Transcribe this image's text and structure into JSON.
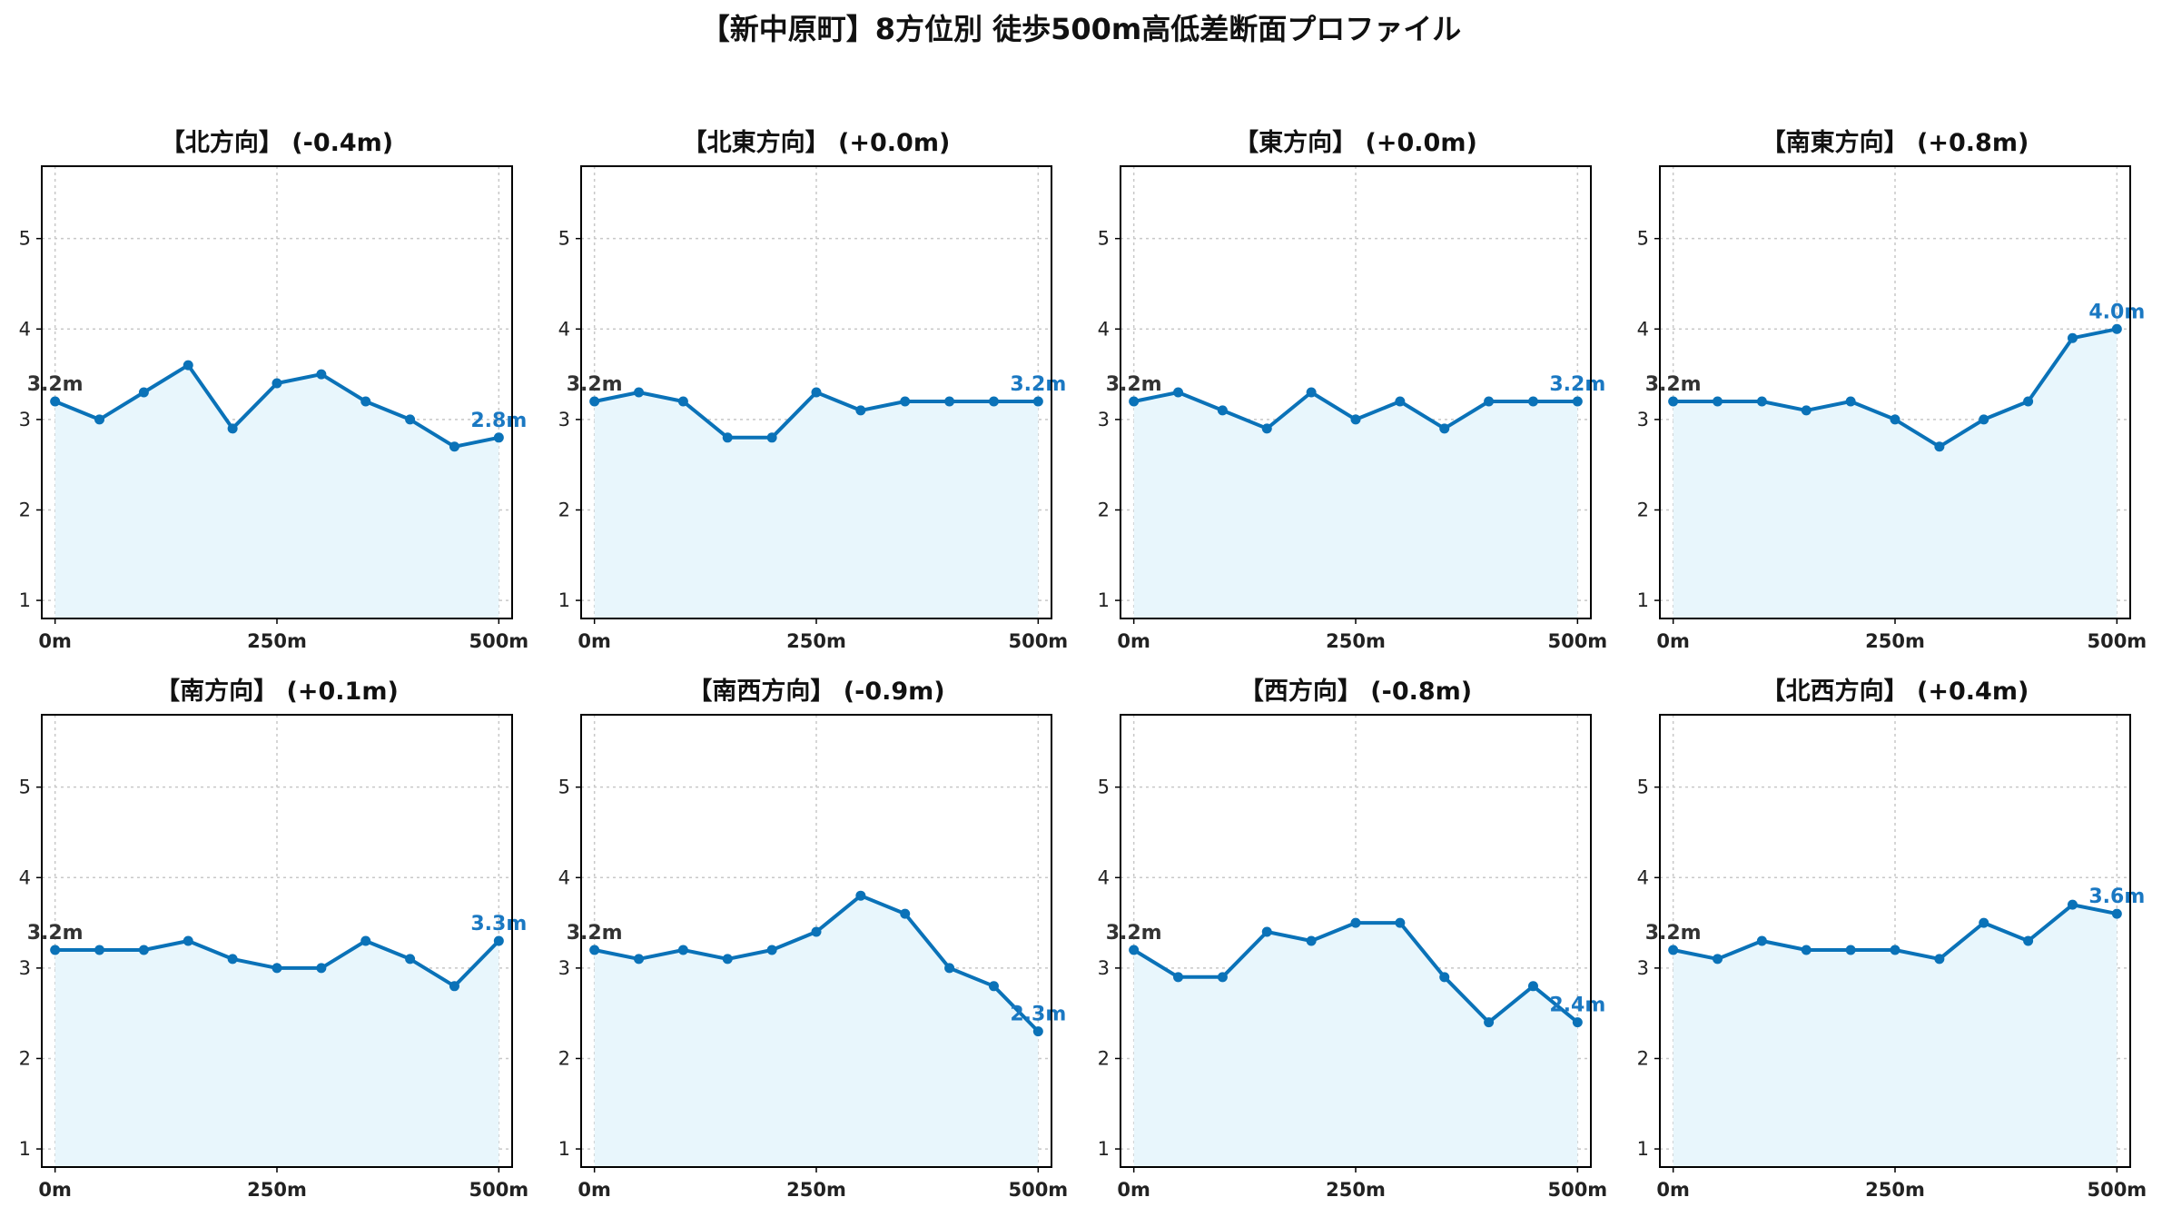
{
  "title": "【新中原町】8方位別 徒歩500m高低差断面プロファイル",
  "colors": {
    "line": "#0a72b8",
    "fill": "#e8f6fc",
    "grid": "#c8c8c8",
    "axis": "#000000",
    "end_label": "#1a78c2",
    "start_label": "#333333"
  },
  "chart_data": [
    {
      "type": "area",
      "title": "【北方向】 (-0.4m)",
      "x": [
        0,
        50,
        100,
        150,
        200,
        250,
        300,
        350,
        400,
        450,
        500
      ],
      "y": [
        3.2,
        3.0,
        3.3,
        3.6,
        2.9,
        3.4,
        3.5,
        3.2,
        3.0,
        2.7,
        2.8
      ],
      "start_label": "3.2m",
      "end_label": "2.8m",
      "xticks": [
        0,
        250,
        500
      ],
      "xticklabels": [
        "0m",
        "250m",
        "500m"
      ],
      "yticks": [
        1,
        2,
        3,
        4,
        5
      ],
      "xlim": [
        -15,
        515
      ],
      "ylim": [
        0.8,
        5.8
      ],
      "grid": true
    },
    {
      "type": "area",
      "title": "【北東方向】 (+0.0m)",
      "x": [
        0,
        50,
        100,
        150,
        200,
        250,
        300,
        350,
        400,
        450,
        500
      ],
      "y": [
        3.2,
        3.3,
        3.2,
        2.8,
        2.8,
        3.3,
        3.1,
        3.2,
        3.2,
        3.2,
        3.2
      ],
      "start_label": "3.2m",
      "end_label": "3.2m",
      "xticks": [
        0,
        250,
        500
      ],
      "xticklabels": [
        "0m",
        "250m",
        "500m"
      ],
      "yticks": [
        1,
        2,
        3,
        4,
        5
      ],
      "xlim": [
        -15,
        515
      ],
      "ylim": [
        0.8,
        5.8
      ],
      "grid": true
    },
    {
      "type": "area",
      "title": "【東方向】 (+0.0m)",
      "x": [
        0,
        50,
        100,
        150,
        200,
        250,
        300,
        350,
        400,
        450,
        500
      ],
      "y": [
        3.2,
        3.3,
        3.1,
        2.9,
        3.3,
        3.0,
        3.2,
        2.9,
        3.2,
        3.2,
        3.2
      ],
      "start_label": "3.2m",
      "end_label": "3.2m",
      "xticks": [
        0,
        250,
        500
      ],
      "xticklabels": [
        "0m",
        "250m",
        "500m"
      ],
      "yticks": [
        1,
        2,
        3,
        4,
        5
      ],
      "xlim": [
        -15,
        515
      ],
      "ylim": [
        0.8,
        5.8
      ],
      "grid": true
    },
    {
      "type": "area",
      "title": "【南東方向】 (+0.8m)",
      "x": [
        0,
        50,
        100,
        150,
        200,
        250,
        300,
        350,
        400,
        450,
        500
      ],
      "y": [
        3.2,
        3.2,
        3.2,
        3.1,
        3.2,
        3.0,
        2.7,
        3.0,
        3.2,
        3.9,
        4.0
      ],
      "start_label": "3.2m",
      "end_label": "4.0m",
      "xticks": [
        0,
        250,
        500
      ],
      "xticklabels": [
        "0m",
        "250m",
        "500m"
      ],
      "yticks": [
        1,
        2,
        3,
        4,
        5
      ],
      "xlim": [
        -15,
        515
      ],
      "ylim": [
        0.8,
        5.8
      ],
      "grid": true
    },
    {
      "type": "area",
      "title": "【南方向】 (+0.1m)",
      "x": [
        0,
        50,
        100,
        150,
        200,
        250,
        300,
        350,
        400,
        450,
        500
      ],
      "y": [
        3.2,
        3.2,
        3.2,
        3.3,
        3.1,
        3.0,
        3.0,
        3.3,
        3.1,
        2.8,
        3.3
      ],
      "start_label": "3.2m",
      "end_label": "3.3m",
      "xticks": [
        0,
        250,
        500
      ],
      "xticklabels": [
        "0m",
        "250m",
        "500m"
      ],
      "yticks": [
        1,
        2,
        3,
        4,
        5
      ],
      "xlim": [
        -15,
        515
      ],
      "ylim": [
        0.8,
        5.8
      ],
      "grid": true
    },
    {
      "type": "area",
      "title": "【南西方向】 (-0.9m)",
      "x": [
        0,
        50,
        100,
        150,
        200,
        250,
        300,
        350,
        400,
        450,
        500
      ],
      "y": [
        3.2,
        3.1,
        3.2,
        3.1,
        3.2,
        3.4,
        3.8,
        3.6,
        3.0,
        2.8,
        2.3
      ],
      "start_label": "3.2m",
      "end_label": "2.3m",
      "xticks": [
        0,
        250,
        500
      ],
      "xticklabels": [
        "0m",
        "250m",
        "500m"
      ],
      "yticks": [
        1,
        2,
        3,
        4,
        5
      ],
      "xlim": [
        -15,
        515
      ],
      "ylim": [
        0.8,
        5.8
      ],
      "grid": true
    },
    {
      "type": "area",
      "title": "【西方向】 (-0.8m)",
      "x": [
        0,
        50,
        100,
        150,
        200,
        250,
        300,
        350,
        400,
        450,
        500
      ],
      "y": [
        3.2,
        2.9,
        2.9,
        3.4,
        3.3,
        3.5,
        3.5,
        2.9,
        2.4,
        2.8,
        2.4
      ],
      "start_label": "3.2m",
      "end_label": "2.4m",
      "xticks": [
        0,
        250,
        500
      ],
      "xticklabels": [
        "0m",
        "250m",
        "500m"
      ],
      "yticks": [
        1,
        2,
        3,
        4,
        5
      ],
      "xlim": [
        -15,
        515
      ],
      "ylim": [
        0.8,
        5.8
      ],
      "grid": true
    },
    {
      "type": "area",
      "title": "【北西方向】 (+0.4m)",
      "x": [
        0,
        50,
        100,
        150,
        200,
        250,
        300,
        350,
        400,
        450,
        500
      ],
      "y": [
        3.2,
        3.1,
        3.3,
        3.2,
        3.2,
        3.2,
        3.1,
        3.5,
        3.3,
        3.7,
        3.6
      ],
      "start_label": "3.2m",
      "end_label": "3.6m",
      "xticks": [
        0,
        250,
        500
      ],
      "xticklabels": [
        "0m",
        "250m",
        "500m"
      ],
      "yticks": [
        1,
        2,
        3,
        4,
        5
      ],
      "xlim": [
        -15,
        515
      ],
      "ylim": [
        0.8,
        5.8
      ],
      "grid": true
    }
  ]
}
